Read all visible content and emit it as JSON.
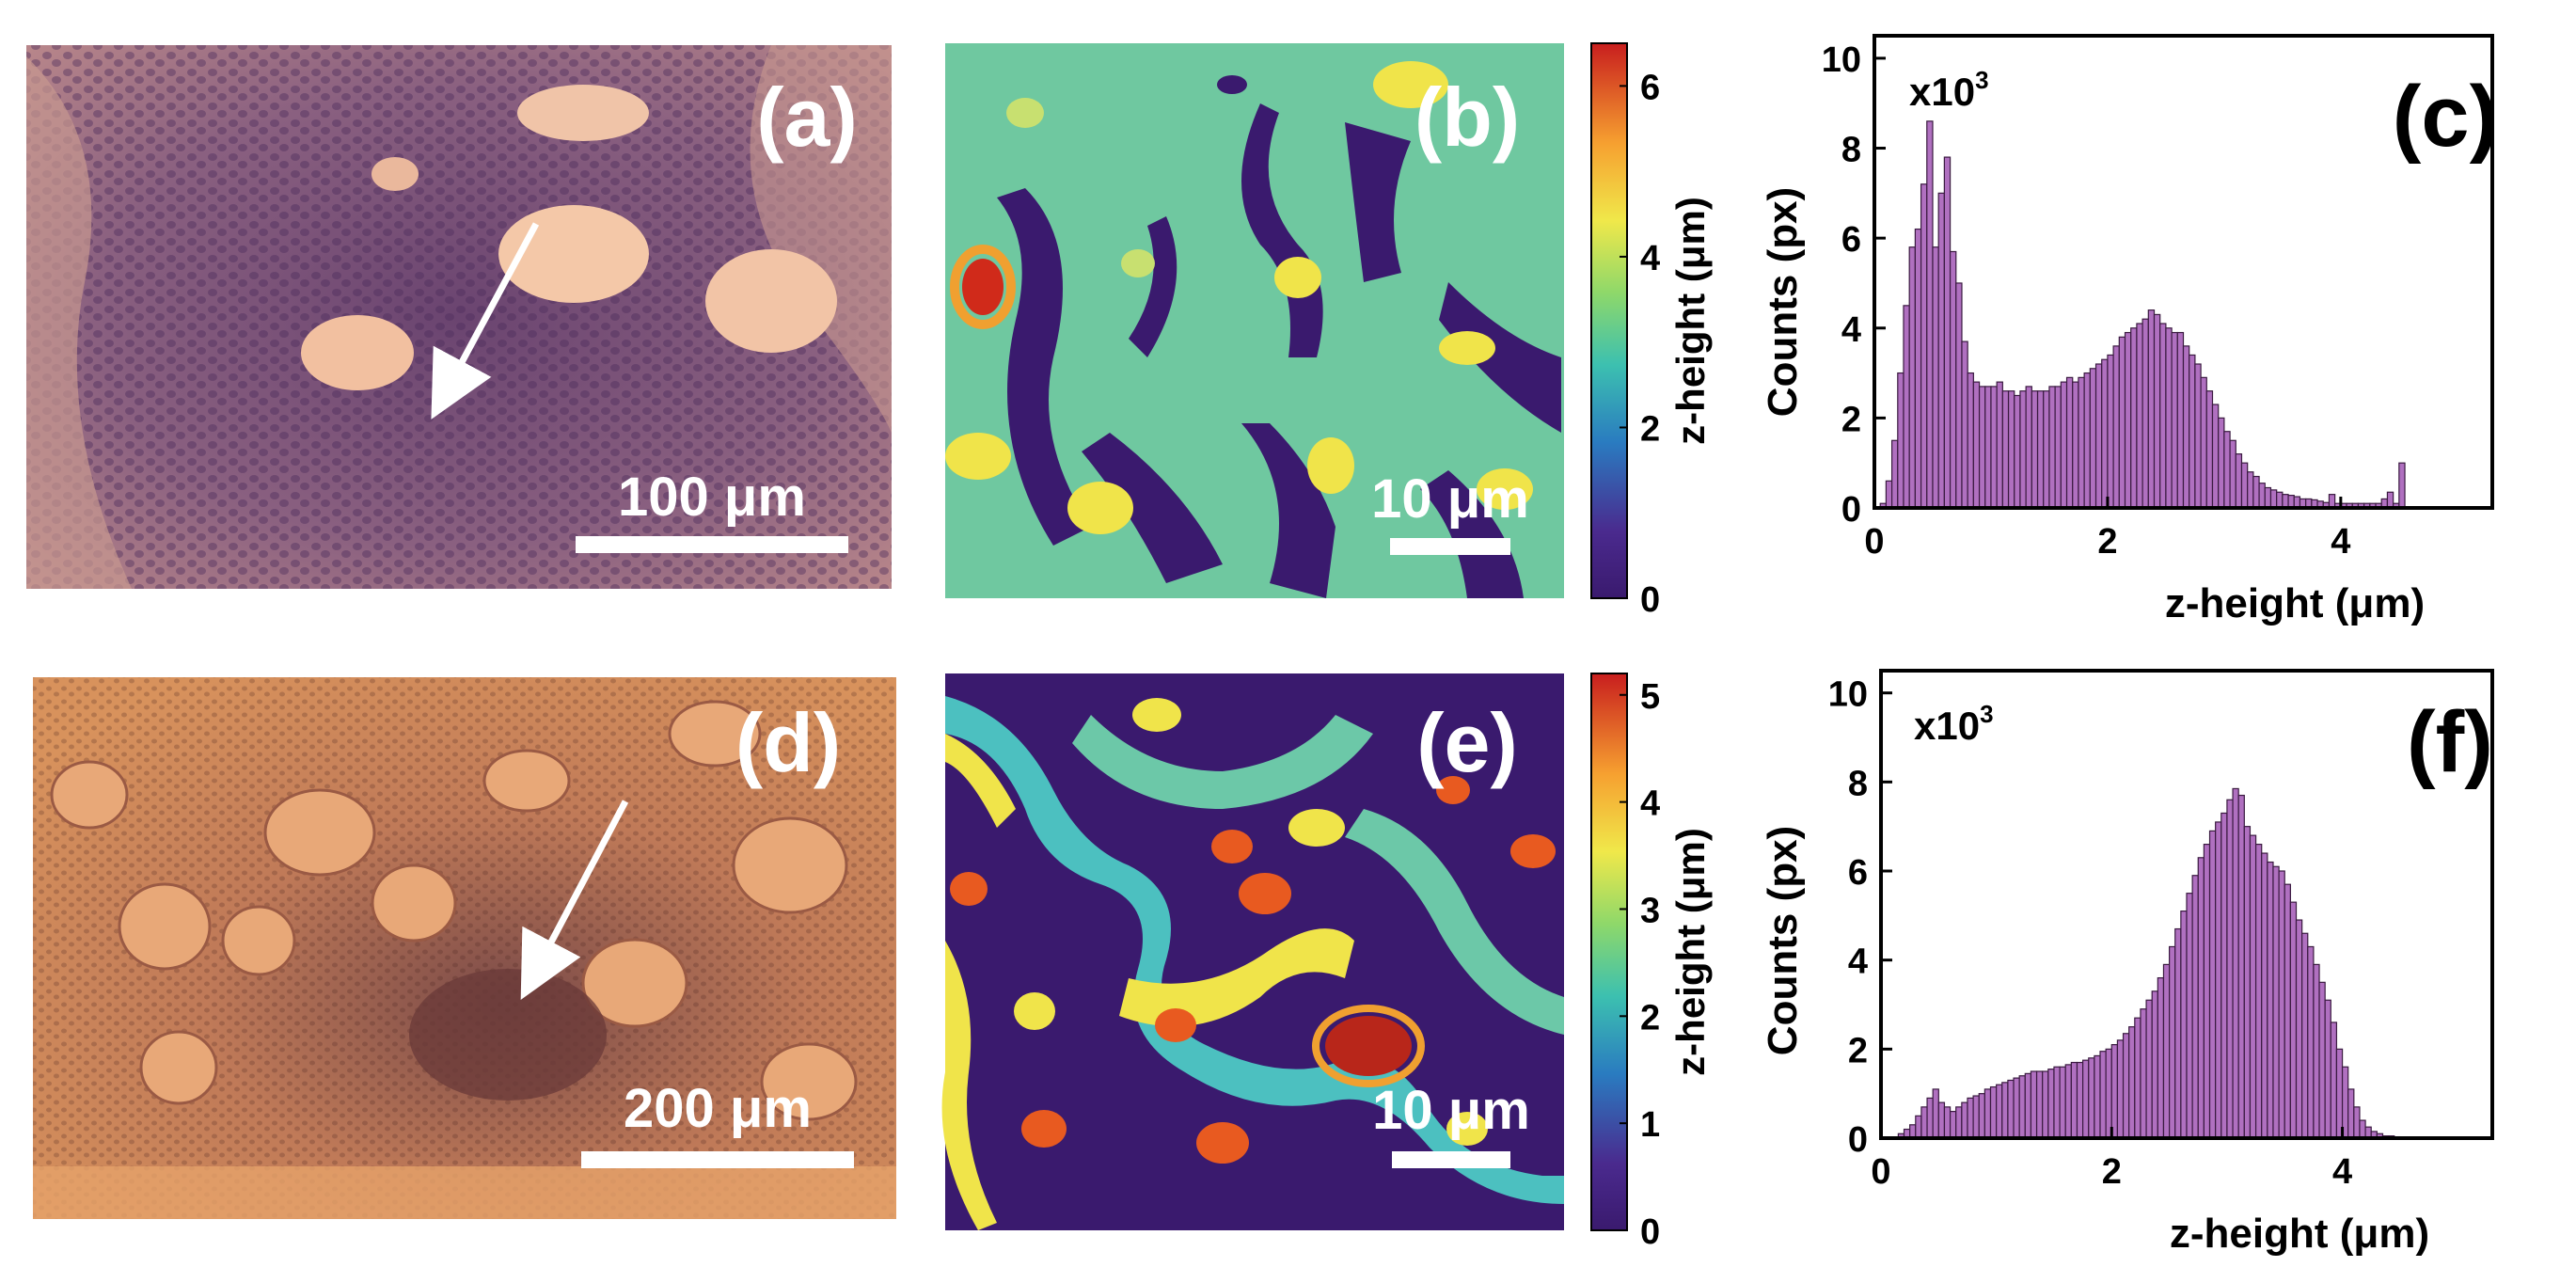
{
  "panels": {
    "a": {
      "label": "(a)",
      "scale_bar": "100 μm"
    },
    "b": {
      "label": "(b)",
      "scale_bar": "10 μm"
    },
    "c": {
      "label": "(c)"
    },
    "d": {
      "label": "(d)",
      "scale_bar": "200 μm"
    },
    "e": {
      "label": "(e)",
      "scale_bar": "10 μm"
    },
    "f": {
      "label": "(f)"
    }
  },
  "colorbars": [
    {
      "label": "z-height (μm)",
      "ticks": [
        "0",
        "2",
        "4",
        "6"
      ],
      "max": 6.5
    },
    {
      "label": "z-height (μm)",
      "ticks": [
        "0",
        "1",
        "2",
        "3",
        "4",
        "5"
      ],
      "max": 5.2
    }
  ],
  "chart_data": [
    {
      "type": "bar",
      "panel": "c",
      "xlabel": "z-height (μm)",
      "ylabel": "Counts (px)",
      "multiplier": "x10",
      "multiplier_exp": "3",
      "xlim": [
        0,
        5.3
      ],
      "ylim": [
        0,
        10.5
      ],
      "xticks": [
        "0",
        "2",
        "4"
      ],
      "yticks": [
        "0",
        "2",
        "4",
        "6",
        "8",
        "10"
      ],
      "bin_width": 0.05,
      "x_start": 0.05,
      "values": [
        0.1,
        0.6,
        1.5,
        3.0,
        4.5,
        5.8,
        6.2,
        7.2,
        8.6,
        5.8,
        7.0,
        7.8,
        5.7,
        5.0,
        3.7,
        3.0,
        2.8,
        2.7,
        2.7,
        2.7,
        2.8,
        2.6,
        2.6,
        2.5,
        2.6,
        2.7,
        2.6,
        2.6,
        2.6,
        2.7,
        2.7,
        2.8,
        2.9,
        2.8,
        2.9,
        3.0,
        3.1,
        3.2,
        3.3,
        3.4,
        3.6,
        3.8,
        3.9,
        4.0,
        4.1,
        4.2,
        4.4,
        4.3,
        4.1,
        4.0,
        3.9,
        3.9,
        3.6,
        3.4,
        3.2,
        2.9,
        2.6,
        2.3,
        2.0,
        1.7,
        1.5,
        1.2,
        1.0,
        0.8,
        0.7,
        0.55,
        0.45,
        0.4,
        0.35,
        0.3,
        0.28,
        0.25,
        0.2,
        0.2,
        0.18,
        0.15,
        0.12,
        0.3,
        0.1,
        0.1,
        0.1,
        0.1,
        0.1,
        0.1,
        0.1,
        0.1,
        0.2,
        0.35,
        0.1,
        1.0
      ]
    },
    {
      "type": "bar",
      "panel": "f",
      "xlabel": "z-height (μm)",
      "ylabel": "Counts (px)",
      "multiplier": "x10",
      "multiplier_exp": "3",
      "xlim": [
        0,
        5.3
      ],
      "ylim": [
        0,
        10.5
      ],
      "xticks": [
        "0",
        "2",
        "4"
      ],
      "yticks": [
        "0",
        "2",
        "4",
        "6",
        "8",
        "10"
      ],
      "bin_width": 0.05,
      "x_start": 0.15,
      "values": [
        0.1,
        0.2,
        0.3,
        0.5,
        0.7,
        0.9,
        1.1,
        0.8,
        0.7,
        0.6,
        0.7,
        0.8,
        0.9,
        0.95,
        1.0,
        1.1,
        1.15,
        1.2,
        1.25,
        1.3,
        1.35,
        1.4,
        1.45,
        1.5,
        1.5,
        1.5,
        1.55,
        1.6,
        1.6,
        1.65,
        1.7,
        1.7,
        1.75,
        1.8,
        1.85,
        1.95,
        2.0,
        2.1,
        2.2,
        2.35,
        2.5,
        2.7,
        2.9,
        3.1,
        3.3,
        3.6,
        3.9,
        4.3,
        4.7,
        5.1,
        5.5,
        5.9,
        6.3,
        6.6,
        6.9,
        7.1,
        7.3,
        7.6,
        7.85,
        7.7,
        7.0,
        6.8,
        6.6,
        6.4,
        6.2,
        6.1,
        6.0,
        5.7,
        5.3,
        4.9,
        4.6,
        4.3,
        3.9,
        3.5,
        3.1,
        2.6,
        2.0,
        1.6,
        1.1,
        0.7,
        0.4,
        0.25,
        0.15,
        0.1,
        0.05,
        0.05,
        0.03,
        0.02
      ]
    }
  ]
}
